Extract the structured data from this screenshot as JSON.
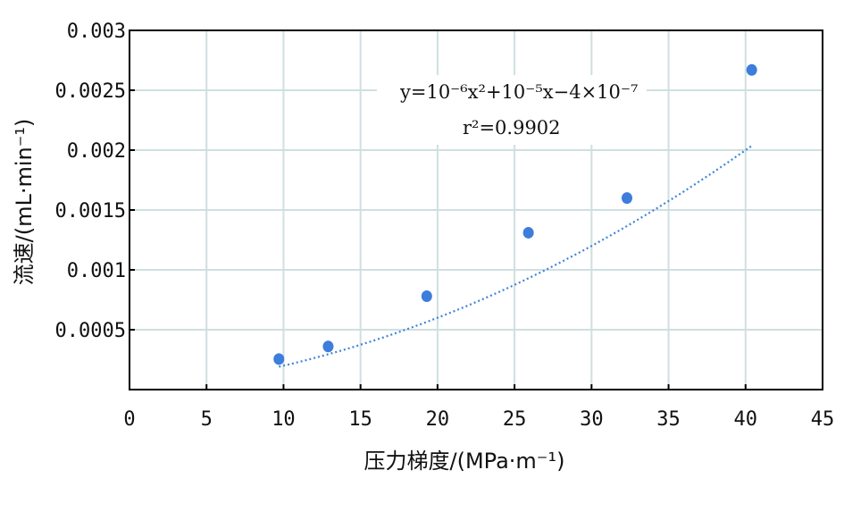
{
  "chart_data": {
    "type": "scatter",
    "xlabel": "压力梯度/(MPa·m⁻¹)",
    "ylabel": "流速/(mL·min⁻¹)",
    "xlim": [
      0,
      45
    ],
    "ylim": [
      0,
      0.003
    ],
    "x_ticks": [
      "0",
      "5",
      "10",
      "15",
      "20",
      "25",
      "30",
      "35",
      "40",
      "45"
    ],
    "y_ticks": [
      "0.0005",
      "0.001",
      "0.0015",
      "0.002",
      "0.0025",
      "0.003"
    ],
    "grid": true,
    "points": [
      {
        "x": 9.7,
        "y": 0.000255
      },
      {
        "x": 12.9,
        "y": 0.00036
      },
      {
        "x": 19.3,
        "y": 0.00078
      },
      {
        "x": 25.9,
        "y": 0.00131
      },
      {
        "x": 32.3,
        "y": 0.0016
      },
      {
        "x": 40.4,
        "y": 0.00267
      }
    ],
    "fit": {
      "style": "dotted",
      "coefficients": {
        "a": 1e-06,
        "b": 1e-05,
        "c": -4e-07
      },
      "x_range": [
        9.7,
        40.4
      ],
      "equation": "y=10⁻⁶x²+10⁻⁵x−4×10⁻⁷",
      "r2": "r²=0.9902"
    },
    "colors": {
      "points": "#3d7ddc",
      "fit_line": "#3d85d8",
      "grid": "#cfdfe0",
      "axis": "#000000"
    }
  }
}
